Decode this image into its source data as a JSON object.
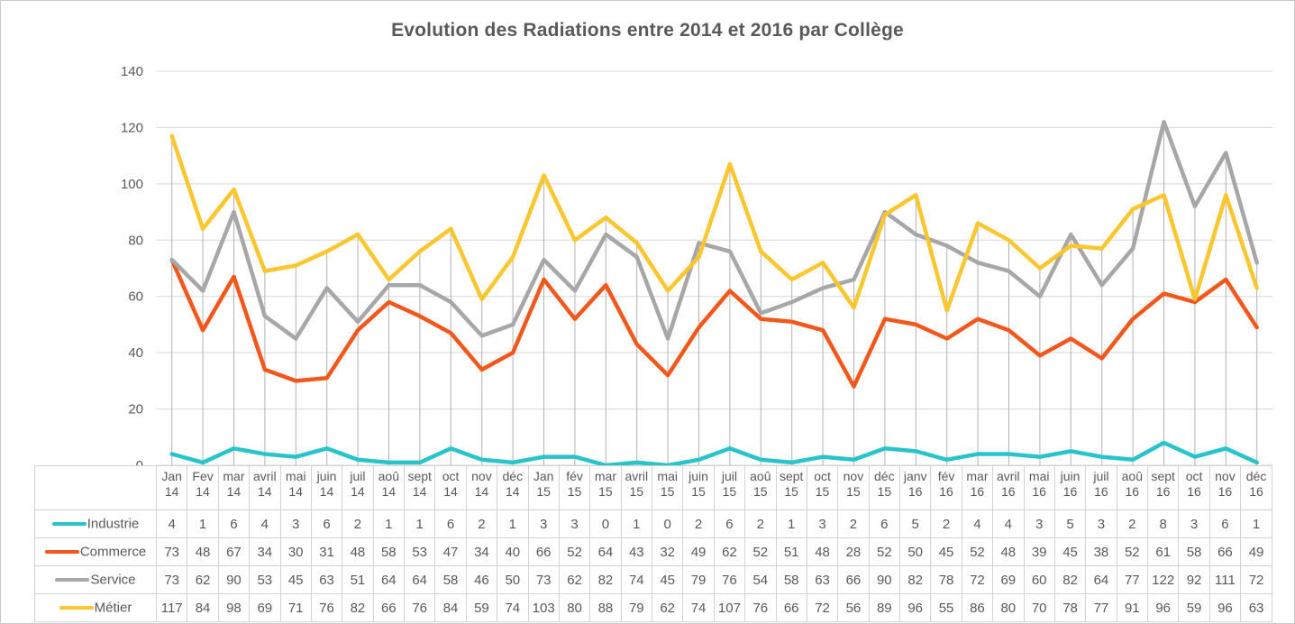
{
  "title": "Evolution des Radiations entre 2014 et 2016 par Collège",
  "colors": {
    "industrie": "#29c4cb",
    "commerce": "#f2581c",
    "service": "#a7a7a7",
    "metier": "#fcc62f",
    "text": "#595959",
    "grid_horizontal": "#d8d8d8",
    "drop_line": "#b3b3b3",
    "table_border": "#d2d2d2"
  },
  "chart_data": {
    "type": "line",
    "title": "Evolution des Radiations entre 2014 et 2016 par Collège",
    "xlabel": "",
    "ylabel": "",
    "ylim": [
      0,
      140
    ],
    "y_ticks": [
      0,
      20,
      40,
      60,
      80,
      100,
      120,
      140
    ],
    "grid": true,
    "legend_position": "table-left",
    "categories": [
      [
        "Jan",
        "14"
      ],
      [
        "Fev",
        "14"
      ],
      [
        "mar",
        "14"
      ],
      [
        "avril",
        "14"
      ],
      [
        "mai",
        "14"
      ],
      [
        "juin",
        "14"
      ],
      [
        "juil",
        "14"
      ],
      [
        "aoû",
        "14"
      ],
      [
        "sept",
        "14"
      ],
      [
        "oct",
        "14"
      ],
      [
        "nov",
        "14"
      ],
      [
        "déc",
        "14"
      ],
      [
        "Jan",
        "15"
      ],
      [
        "fév",
        "15"
      ],
      [
        "mar",
        "15"
      ],
      [
        "avril",
        "15"
      ],
      [
        "mai",
        "15"
      ],
      [
        "juin",
        "15"
      ],
      [
        "juil",
        "15"
      ],
      [
        "aoû",
        "15"
      ],
      [
        "sept",
        "15"
      ],
      [
        "oct",
        "15"
      ],
      [
        "nov",
        "15"
      ],
      [
        "déc",
        "15"
      ],
      [
        "janv",
        "16"
      ],
      [
        "fév",
        "16"
      ],
      [
        "mar",
        "16"
      ],
      [
        "avril",
        "16"
      ],
      [
        "mai",
        "16"
      ],
      [
        "juin",
        "16"
      ],
      [
        "juil",
        "16"
      ],
      [
        "aoû",
        "16"
      ],
      [
        "sept",
        "16"
      ],
      [
        "oct",
        "16"
      ],
      [
        "nov",
        "16"
      ],
      [
        "déc",
        "16"
      ]
    ],
    "series": [
      {
        "name": "Industrie",
        "color": "#29c4cb",
        "values": [
          4,
          1,
          6,
          4,
          3,
          6,
          2,
          1,
          1,
          6,
          2,
          1,
          3,
          3,
          0,
          1,
          0,
          2,
          6,
          2,
          1,
          3,
          2,
          6,
          5,
          2,
          4,
          4,
          3,
          5,
          3,
          2,
          8,
          3,
          6,
          1
        ]
      },
      {
        "name": "Commerce",
        "color": "#f2581c",
        "values": [
          73,
          48,
          67,
          34,
          30,
          31,
          48,
          58,
          53,
          47,
          34,
          40,
          66,
          52,
          64,
          43,
          32,
          49,
          62,
          52,
          51,
          48,
          28,
          52,
          50,
          45,
          52,
          48,
          39,
          45,
          38,
          52,
          61,
          58,
          66,
          49
        ]
      },
      {
        "name": "Service",
        "color": "#a7a7a7",
        "values": [
          73,
          62,
          90,
          53,
          45,
          63,
          51,
          64,
          64,
          58,
          46,
          50,
          73,
          62,
          82,
          74,
          45,
          79,
          76,
          54,
          58,
          63,
          66,
          90,
          82,
          78,
          72,
          69,
          60,
          82,
          64,
          77,
          122,
          92,
          111,
          72
        ]
      },
      {
        "name": "Métier",
        "color": "#fcc62f",
        "values": [
          117,
          84,
          98,
          69,
          71,
          76,
          82,
          66,
          76,
          84,
          59,
          74,
          103,
          80,
          88,
          79,
          62,
          74,
          107,
          76,
          66,
          72,
          56,
          89,
          96,
          55,
          86,
          80,
          70,
          78,
          77,
          91,
          96,
          59,
          96,
          63
        ]
      }
    ]
  }
}
